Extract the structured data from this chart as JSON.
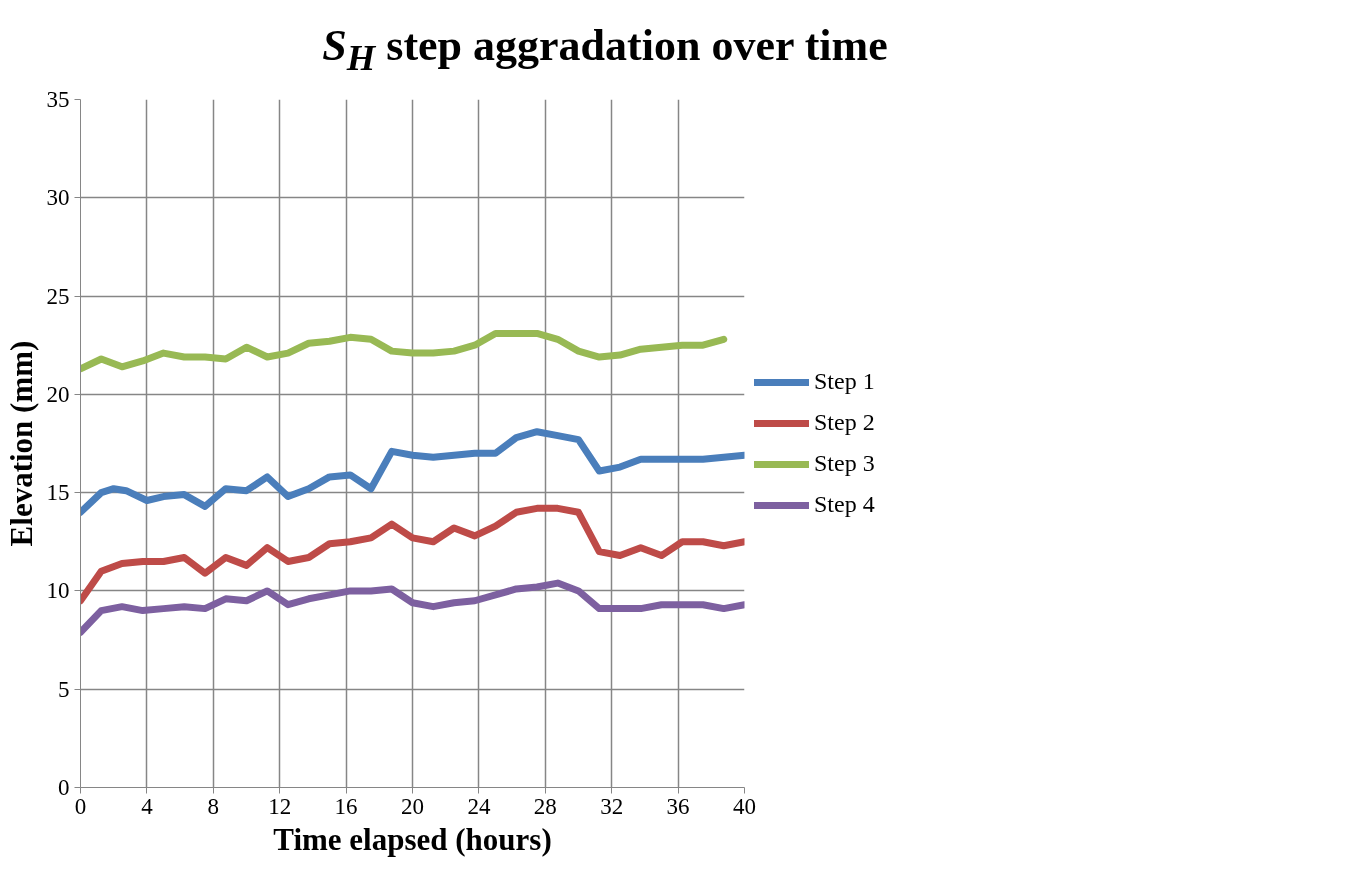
{
  "chart_data": {
    "type": "line",
    "title": "S$_{H}$ step aggradation over time",
    "xlabel": "Time elapsed (hours)",
    "ylabel": "Elevation (mm)",
    "xlim": [
      0,
      40
    ],
    "xticks": [
      0,
      4,
      8,
      12,
      16,
      20,
      24,
      28,
      32,
      36,
      40
    ],
    "ylim": [
      0,
      35
    ],
    "yticks": [
      0,
      5,
      10,
      15,
      20,
      25,
      30,
      35
    ],
    "grid": true,
    "legend": "right",
    "marker": "none",
    "line_style": "solid",
    "series": [
      {
        "name": "Step 1",
        "color": "#4a7ebb",
        "x": [
          0,
          1.25,
          2,
          2.75,
          4,
          5,
          6.25,
          7.5,
          8.75,
          10,
          11.25,
          12.5,
          13.75,
          15,
          16.25,
          17.5,
          18.75,
          20,
          21.25,
          22.5,
          23.75,
          25,
          26.25,
          27.5,
          28.75,
          30,
          31.25,
          32.5,
          33.75,
          35,
          36.25,
          37.5,
          38.75,
          40
        ],
        "values": [
          14.0,
          15.0,
          15.2,
          15.1,
          14.6,
          14.8,
          14.9,
          14.3,
          15.2,
          15.1,
          15.8,
          14.8,
          15.2,
          15.8,
          15.9,
          15.2,
          17.1,
          16.9,
          16.8,
          16.9,
          17.0,
          17.0,
          17.8,
          18.1,
          17.9,
          17.7,
          16.1,
          16.3,
          16.7,
          16.7,
          16.7,
          16.7,
          16.8,
          16.9
        ]
      },
      {
        "name": "Step 2",
        "color": "#be4b48",
        "x": [
          0,
          1.25,
          2.5,
          3.75,
          5,
          6.25,
          7.5,
          8.75,
          10,
          11.25,
          12.5,
          13.75,
          15,
          16.25,
          17.5,
          18.75,
          20,
          21.25,
          22.5,
          23.75,
          25,
          26.25,
          27.5,
          28.75,
          30,
          31.25,
          32.5,
          33.75,
          35,
          36.25,
          37.5,
          38.75,
          40
        ],
        "values": [
          9.5,
          11.0,
          11.4,
          11.5,
          11.5,
          11.7,
          10.9,
          11.7,
          11.3,
          12.2,
          11.5,
          11.7,
          12.4,
          12.5,
          12.7,
          13.4,
          12.7,
          12.5,
          13.2,
          12.8,
          13.3,
          14.0,
          14.2,
          14.2,
          14.0,
          12.0,
          11.8,
          12.2,
          11.8,
          12.5,
          12.5,
          12.3,
          12.5
        ]
      },
      {
        "name": "Step 3",
        "color": "#98b954",
        "x": [
          0,
          1.25,
          2.5,
          3.75,
          5,
          6.25,
          7.5,
          8.75,
          10,
          11.25,
          12.5,
          13.75,
          15,
          16.25,
          17.5,
          18.75,
          20,
          21.25,
          22.5,
          23.75,
          25,
          26.25,
          27.5,
          28.75,
          30,
          31.25,
          32.5,
          33.75,
          35,
          36.25,
          37.5,
          38.75
        ],
        "values": [
          21.3,
          21.8,
          21.4,
          21.7,
          22.1,
          21.9,
          21.9,
          21.8,
          22.4,
          21.9,
          22.1,
          22.6,
          22.7,
          22.9,
          22.8,
          22.2,
          22.1,
          22.1,
          22.2,
          22.5,
          23.1,
          23.1,
          23.1,
          22.8,
          22.2,
          21.9,
          22.0,
          22.3,
          22.4,
          22.5,
          22.5,
          22.8
        ]
      },
      {
        "name": "Step 4",
        "color": "#7d60a0",
        "x": [
          0,
          1.25,
          2.5,
          3.75,
          5,
          6.25,
          7.5,
          8.75,
          10,
          11.25,
          12.5,
          13.75,
          15,
          16.25,
          17.5,
          18.75,
          20,
          21.25,
          22.5,
          23.75,
          25,
          26.25,
          27.5,
          28.75,
          30,
          31.25,
          32.5,
          33.75,
          35,
          36.25,
          37.5,
          38.75,
          40
        ],
        "values": [
          7.9,
          9.0,
          9.2,
          9.0,
          9.1,
          9.2,
          9.1,
          9.6,
          9.5,
          10.0,
          9.3,
          9.6,
          9.8,
          10.0,
          10.0,
          10.1,
          9.4,
          9.2,
          9.4,
          9.5,
          9.8,
          10.1,
          10.2,
          10.4,
          10.0,
          9.1,
          9.1,
          9.1,
          9.3,
          9.3,
          9.3,
          9.1,
          9.3
        ]
      }
    ]
  }
}
